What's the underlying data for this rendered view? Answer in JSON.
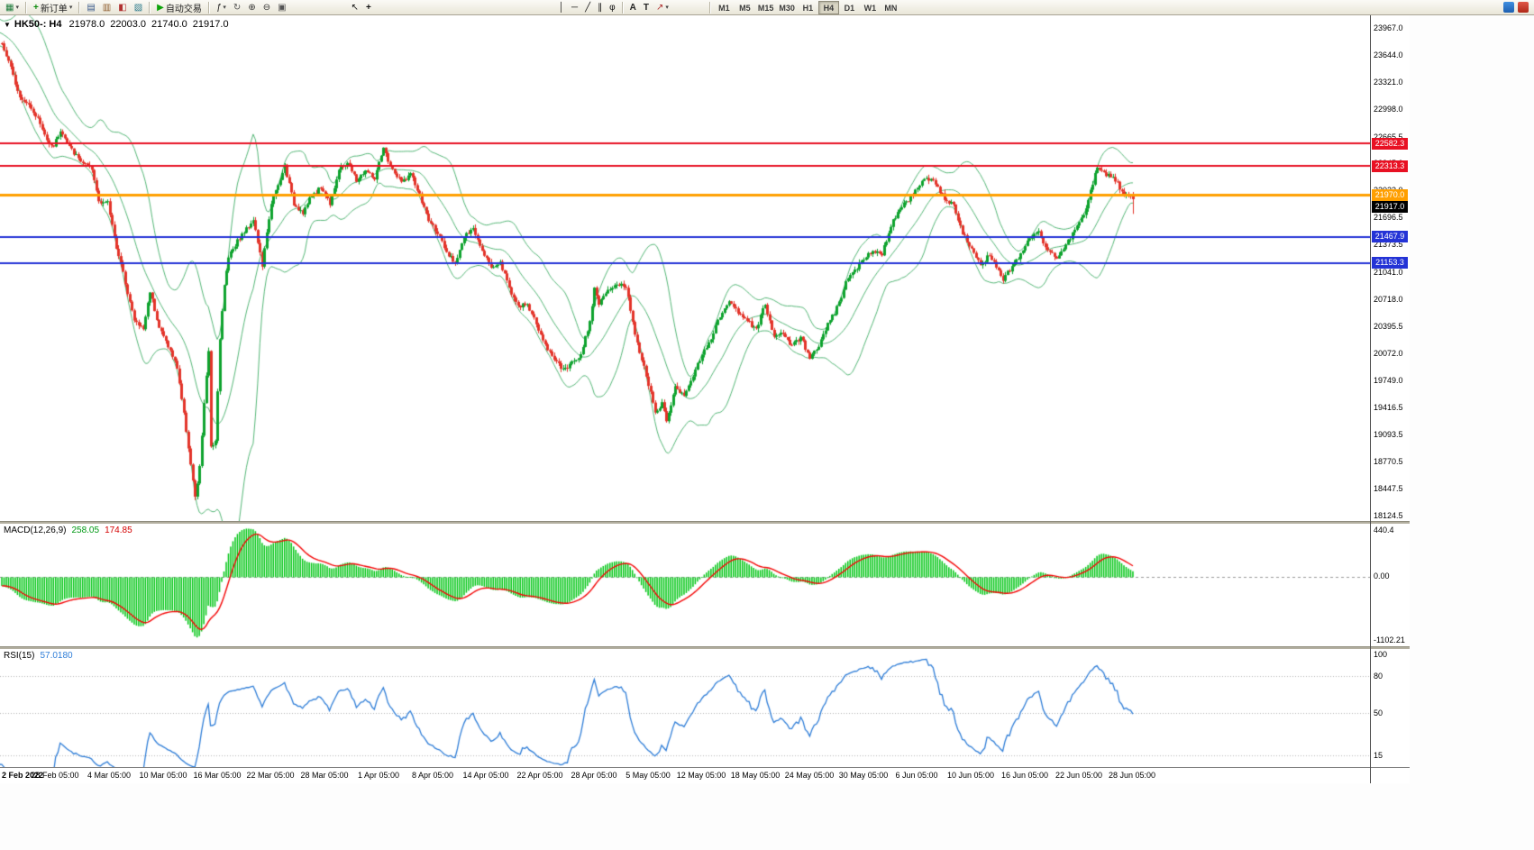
{
  "toolbar": {
    "new_order_label": "新订单",
    "autotrading_label": "自动交易",
    "text_tool_label": "A",
    "label_tool_label": "T",
    "timeframes": [
      "M1",
      "M5",
      "M15",
      "M30",
      "H1",
      "H4",
      "D1",
      "W1",
      "MN"
    ],
    "active_timeframe": "H4",
    "icons": {
      "new_chart": "▦",
      "caret": "▾",
      "market_watch": "▤",
      "data_window": "▥",
      "navigator": "◧",
      "terminal": "▧",
      "autotrading_play": "▶",
      "new_order_plus": "+",
      "indicators": "ƒ",
      "cycles": "↻",
      "zoom_in": "⊕",
      "zoom_out": "⊖",
      "tile_windows": "▣",
      "cursor": "↖",
      "crosshair": "+",
      "vline": "│",
      "hline": "─",
      "trendline": "╱",
      "channel": "∥",
      "fibonacci": "φ",
      "arrow_tool": "↗"
    }
  },
  "chart": {
    "title": {
      "icon": "▼",
      "symbol_tf": "HK50-: H4",
      "open": "21978.0",
      "high": "22003.0",
      "low": "21740.0",
      "close": "21917.0"
    },
    "price_axis_ticks": [
      "23967.0",
      "23644.0",
      "23321.0",
      "22998.0",
      "22665.5",
      "22345.0",
      "22022.0",
      "21696.5",
      "21373.5",
      "21041.0",
      "20718.0",
      "20395.5",
      "20072.0",
      "19749.0",
      "19416.5",
      "19093.5",
      "18770.5",
      "18447.5",
      "18124.5"
    ],
    "levels": [
      {
        "label": "22582.3",
        "value": 22582.3,
        "color": "#e81123",
        "width": 2
      },
      {
        "label": "22313.3",
        "value": 22313.3,
        "color": "#e81123",
        "width": 2
      },
      {
        "label": "21970.0",
        "value": 21970.0,
        "color": "#ff9f00",
        "width": 3
      },
      {
        "label": "21467.9",
        "value": 21467.9,
        "color": "#2433d6",
        "width": 2
      },
      {
        "label": "21153.3",
        "value": 21153.3,
        "color": "#2433d6",
        "width": 2
      }
    ],
    "bid": {
      "label": "21917.0",
      "value": 21917.0,
      "color": "#000000"
    },
    "time_axis": [
      "2 Feb 2022",
      "28 Feb 05:00",
      "4 Mar 05:00",
      "10 Mar 05:00",
      "16 Mar 05:00",
      "22 Mar 05:00",
      "28 Mar 05:00",
      "1 Apr 05:00",
      "8 Apr 05:00",
      "14 Apr 05:00",
      "22 Apr 05:00",
      "28 Apr 05:00",
      "5 May 05:00",
      "12 May 05:00",
      "18 May 05:00",
      "24 May 05:00",
      "30 May 05:00",
      "6 Jun 05:00",
      "10 Jun 05:00",
      "16 Jun 05:00",
      "22 Jun 05:00",
      "28 Jun 05:00"
    ]
  },
  "macd_panel": {
    "label": "MACD(12,26,9)",
    "main_value": "258.05",
    "signal_value": "174.85",
    "axis_top": "440.4",
    "axis_zero": "0.00",
    "axis_bottom": "-1102.21"
  },
  "rsi_panel": {
    "label": "RSI(15)",
    "value": "57.0180",
    "axis": [
      {
        "label": "100",
        "value": 100
      },
      {
        "label": "80",
        "value": 80
      },
      {
        "label": "50",
        "value": 50
      },
      {
        "label": "15",
        "value": 15
      }
    ],
    "level_lines": [
      80,
      50,
      15
    ]
  },
  "chart_data": {
    "type": "candlestick",
    "symbol": "HK50-",
    "timeframe": "H4",
    "bars": 505,
    "price_range": [
      18060,
      24120
    ],
    "last_bar": {
      "open": 21978.0,
      "high": 22003.0,
      "low": 21740.0,
      "close": 21917.0
    },
    "close_waypoints": [
      [
        0,
        23780
      ],
      [
        4,
        23480
      ],
      [
        8,
        23150
      ],
      [
        12,
        23060
      ],
      [
        16,
        22880
      ],
      [
        20,
        22620
      ],
      [
        23,
        22560
      ],
      [
        26,
        22740
      ],
      [
        30,
        22540
      ],
      [
        34,
        22400
      ],
      [
        40,
        22260
      ],
      [
        43,
        21900
      ],
      [
        47,
        21870
      ],
      [
        51,
        21340
      ],
      [
        55,
        20920
      ],
      [
        59,
        20460
      ],
      [
        63,
        20360
      ],
      [
        66,
        20820
      ],
      [
        70,
        20380
      ],
      [
        74,
        20160
      ],
      [
        78,
        19900
      ],
      [
        82,
        19150
      ],
      [
        86,
        18330
      ],
      [
        88,
        18700
      ],
      [
        90,
        19480
      ],
      [
        92,
        20080
      ],
      [
        93,
        18960
      ],
      [
        95,
        19020
      ],
      [
        97,
        20250
      ],
      [
        99,
        20880
      ],
      [
        101,
        21240
      ],
      [
        105,
        21420
      ],
      [
        109,
        21560
      ],
      [
        112,
        21680
      ],
      [
        116,
        21120
      ],
      [
        120,
        21880
      ],
      [
        124,
        22140
      ],
      [
        126,
        22320
      ],
      [
        130,
        21860
      ],
      [
        134,
        21760
      ],
      [
        138,
        21960
      ],
      [
        142,
        22060
      ],
      [
        146,
        21870
      ],
      [
        150,
        22260
      ],
      [
        154,
        22360
      ],
      [
        158,
        22140
      ],
      [
        162,
        22260
      ],
      [
        166,
        22160
      ],
      [
        170,
        22520
      ],
      [
        172,
        22380
      ],
      [
        174,
        22260
      ],
      [
        178,
        22120
      ],
      [
        182,
        22220
      ],
      [
        186,
        21960
      ],
      [
        190,
        21660
      ],
      [
        194,
        21520
      ],
      [
        198,
        21260
      ],
      [
        202,
        21160
      ],
      [
        206,
        21460
      ],
      [
        210,
        21560
      ],
      [
        214,
        21320
      ],
      [
        218,
        21100
      ],
      [
        222,
        21160
      ],
      [
        226,
        20860
      ],
      [
        230,
        20620
      ],
      [
        234,
        20660
      ],
      [
        238,
        20420
      ],
      [
        242,
        20160
      ],
      [
        246,
        20010
      ],
      [
        250,
        19860
      ],
      [
        254,
        19960
      ],
      [
        258,
        20060
      ],
      [
        262,
        20460
      ],
      [
        264,
        20860
      ],
      [
        266,
        20660
      ],
      [
        270,
        20810
      ],
      [
        274,
        20910
      ],
      [
        278,
        20860
      ],
      [
        282,
        20320
      ],
      [
        285,
        19990
      ],
      [
        288,
        19700
      ],
      [
        291,
        19350
      ],
      [
        294,
        19460
      ],
      [
        296,
        19280
      ],
      [
        300,
        19660
      ],
      [
        304,
        19560
      ],
      [
        308,
        19810
      ],
      [
        312,
        20060
      ],
      [
        316,
        20260
      ],
      [
        320,
        20510
      ],
      [
        324,
        20710
      ],
      [
        328,
        20560
      ],
      [
        332,
        20460
      ],
      [
        336,
        20360
      ],
      [
        340,
        20660
      ],
      [
        344,
        20260
      ],
      [
        348,
        20310
      ],
      [
        352,
        20160
      ],
      [
        356,
        20260
      ],
      [
        360,
        20010
      ],
      [
        364,
        20160
      ],
      [
        368,
        20410
      ],
      [
        372,
        20610
      ],
      [
        376,
        20910
      ],
      [
        380,
        21060
      ],
      [
        384,
        21210
      ],
      [
        388,
        21310
      ],
      [
        392,
        21260
      ],
      [
        396,
        21610
      ],
      [
        400,
        21810
      ],
      [
        404,
        21910
      ],
      [
        408,
        22060
      ],
      [
        412,
        22160
      ],
      [
        416,
        22110
      ],
      [
        420,
        21910
      ],
      [
        424,
        21860
      ],
      [
        428,
        21510
      ],
      [
        432,
        21310
      ],
      [
        436,
        21110
      ],
      [
        440,
        21260
      ],
      [
        444,
        21060
      ],
      [
        446,
        20960
      ],
      [
        450,
        21110
      ],
      [
        454,
        21260
      ],
      [
        458,
        21460
      ],
      [
        462,
        21510
      ],
      [
        466,
        21310
      ],
      [
        470,
        21210
      ],
      [
        474,
        21360
      ],
      [
        478,
        21560
      ],
      [
        482,
        21710
      ],
      [
        486,
        22110
      ],
      [
        488,
        22310
      ],
      [
        492,
        22210
      ],
      [
        496,
        22150
      ],
      [
        500,
        21960
      ],
      [
        504,
        21917
      ]
    ],
    "indicators": {
      "bollinger": {
        "period": 20,
        "deviation": 2
      },
      "macd": {
        "fast": 12,
        "slow": 26,
        "signal": 9,
        "main": 258.05,
        "signal_value": 174.85
      },
      "rsi": {
        "period": 15,
        "value": 57.018
      }
    }
  },
  "colors": {
    "bull": "#0ea32e",
    "bear": "#e3342a",
    "bollinger": "#56b878",
    "macd_hist": "#00c614",
    "macd_signal": "#f40606",
    "rsi_line": "#2f7ed8",
    "rsi_levels": "#b5b5b5",
    "zero_line": "#9a9a9a",
    "background": "#ffffff"
  }
}
